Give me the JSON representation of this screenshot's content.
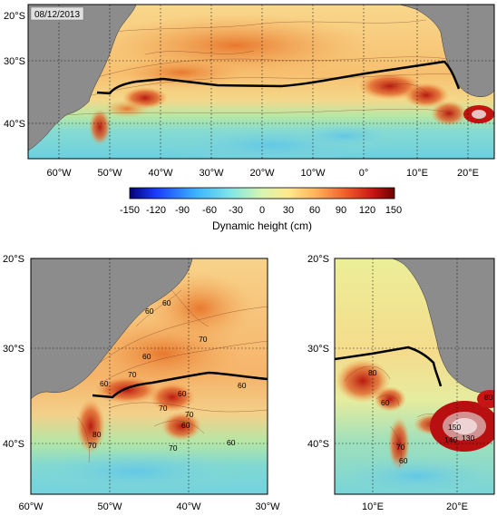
{
  "date_stamp": "08/12/2013",
  "colors": {
    "land": "#8c8c8c",
    "route": "#000000",
    "ocean_low": "#1a3cff",
    "ocean_mid": "#ffe98a",
    "ocean_high": "#a80010"
  },
  "top_map": {
    "lat_labels": [
      "20°S",
      "30°S",
      "40°S"
    ],
    "lon_labels": [
      "60°W",
      "50°W",
      "40°W",
      "30°W",
      "20°W",
      "10°W",
      "0°",
      "10°E",
      "20°E"
    ]
  },
  "colorbar": {
    "ticks": [
      "-150",
      "-120",
      "-90",
      "-60",
      "-30",
      "0",
      "30",
      "60",
      "90",
      "120",
      "150"
    ],
    "title": "Dynamic height (cm)",
    "range": [
      -150,
      150
    ]
  },
  "bottom_left_map": {
    "lat_labels": [
      "20°S",
      "30°S",
      "40°S"
    ],
    "lon_labels": [
      "60°W",
      "50°W",
      "40°W",
      "30°W"
    ],
    "contour_labels": [
      "60",
      "60",
      "60",
      "70",
      "70",
      "60",
      "60",
      "70",
      "70",
      "60",
      "60",
      "70",
      "80",
      "70",
      "60"
    ]
  },
  "bottom_right_map": {
    "lat_labels": [
      "20°S",
      "30°S",
      "40°S"
    ],
    "lon_labels": [
      "10°E",
      "20°E"
    ],
    "contour_labels": [
      "80",
      "60",
      "70",
      "60",
      "150",
      "140",
      "130",
      "80"
    ]
  }
}
